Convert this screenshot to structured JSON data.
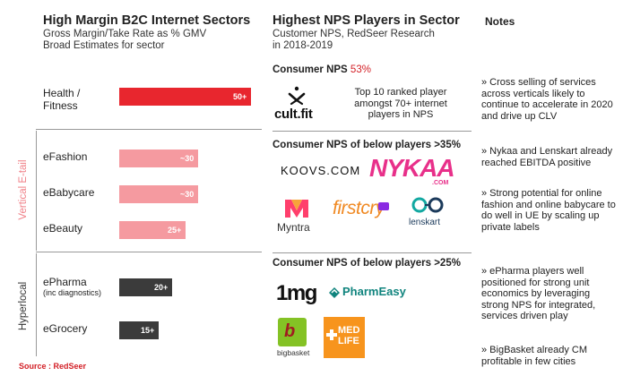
{
  "left": {
    "title": "High Margin B2C Internet Sectors",
    "subtitle_1": "Gross Margin/Take Rate  as % GMV",
    "subtitle_2": "Broad Estimates for sector"
  },
  "middle": {
    "title": "Highest NPS Players in Sector",
    "subtitle_1": "Customer NPS, RedSeer Research",
    "subtitle_2": "in 2018-2019"
  },
  "right": {
    "title": "Notes"
  },
  "groups": {
    "ecommerce": "Vertical E-tail",
    "hyperlocal": "Hyperlocal"
  },
  "chart_data": {
    "type": "bar",
    "orientation": "horizontal",
    "title": "High Margin B2C Internet Sectors",
    "ylabel": "Gross Margin/Take Rate as % GMV",
    "xlim": [
      0,
      50
    ],
    "categories": [
      "Health / Fitness",
      "eFashion",
      "eBabycare",
      "eBeauty",
      "ePharma",
      "eGrocery"
    ],
    "category_note": {
      "ePharma": "(inc diagnostics)"
    },
    "values": [
      50,
      30,
      30,
      25,
      20,
      15
    ],
    "value_labels": [
      "50+",
      "~30",
      "~30",
      "25+",
      "20+",
      "15+"
    ],
    "colors": [
      "#e8262e",
      "#f59aa0",
      "#f59aa0",
      "#f59aa0",
      "#3b3b3b",
      "#3b3b3b"
    ]
  },
  "nps": {
    "consumer": {
      "label": "Consumer NPS ",
      "value": "53%"
    },
    "below35": "Consumer NPS of below players >35%",
    "below25": "Consumer NPS of below players >25%",
    "cultfit_text": "Top 10  ranked player amongst 70+ internet players in NPS"
  },
  "logos": {
    "cultfit": "cult.fit",
    "koovs": "KOOVS.COM",
    "nykaa": "NYKAA",
    "nykaa_com": ".COM",
    "myntra": "Myntra",
    "firstcry": "firstcry",
    "lenskart": "lenskart",
    "onemg": "1mg",
    "pharmeasy": "PharmEasy",
    "bigbasket": "bigbasket",
    "medlife_1": "MED",
    "medlife_2": "LIFE"
  },
  "notes": [
    "» Cross selling of services across verticals likely to continue to accelerate in 2020 and drive up CLV",
    "» Nykaa and Lenskart already reached EBITDA positive",
    "» Strong potential for online fashion and online babycare to do well in UE by scaling up private labels",
    "» ePharma players well positioned for strong unit economics by leveraging strong NPS for integrated, services driven play",
    "» BigBasket already CM profitable in few cities"
  ],
  "source": "Source : RedSeer",
  "colors": {
    "accent": "#e8262e",
    "pink": "#f59aa0",
    "dark": "#3b3b3b"
  }
}
